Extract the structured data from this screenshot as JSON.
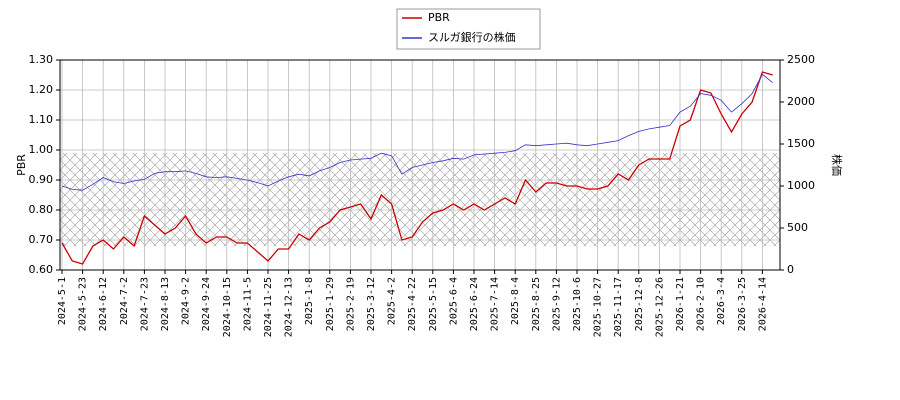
{
  "chart_data": {
    "type": "line",
    "categories": [
      "2024-5-1",
      null,
      "2024-5-23",
      null,
      "2024-6-12",
      null,
      "2024-7-2",
      null,
      "2024-7-23",
      null,
      "2024-8-13",
      null,
      "2024-9-2",
      null,
      "2024-9-24",
      null,
      "2024-10-15",
      null,
      "2024-11-5",
      null,
      "2024-11-25",
      null,
      "2024-12-13",
      null,
      "2025-1-8",
      null,
      "2025-1-29",
      null,
      "2025-2-19",
      null,
      "2025-3-12",
      null,
      "2025-4-2",
      null,
      "2025-4-22",
      null,
      "2025-5-15",
      null,
      "2025-6-4",
      null,
      "2025-6-24",
      null,
      "2025-7-14",
      null,
      "2025-8-4",
      null,
      "2025-8-25",
      null,
      "2025-9-12",
      null,
      "2025-10-6",
      null,
      "2025-10-27",
      null,
      "2025-11-17",
      null,
      "2025-12-8",
      null,
      "2025-12-26",
      null,
      "2026-1-21",
      null,
      "2026-2-10",
      null,
      "2026-3-4",
      null,
      "2026-3-25",
      null,
      "2026-4-14",
      null
    ],
    "series": [
      {
        "name": "PBR",
        "color": "#cc0000",
        "axis": "y",
        "values": [
          0.69,
          0.63,
          0.62,
          0.68,
          0.7,
          0.67,
          0.71,
          0.68,
          0.78,
          0.75,
          0.72,
          0.74,
          0.78,
          0.72,
          0.69,
          0.71,
          0.71,
          0.69,
          0.69,
          0.66,
          0.63,
          0.67,
          0.67,
          0.72,
          0.7,
          0.74,
          0.76,
          0.8,
          0.81,
          0.82,
          0.77,
          0.85,
          0.82,
          0.7,
          0.71,
          0.76,
          0.79,
          0.8,
          0.82,
          0.8,
          0.82,
          0.8,
          0.82,
          0.84,
          0.82,
          0.9,
          0.86,
          0.89,
          0.89,
          0.88,
          0.88,
          0.87,
          0.87,
          0.88,
          0.92,
          0.9,
          0.95,
          0.97,
          0.97,
          0.97,
          1.08,
          1.1,
          1.2,
          1.19,
          1.12,
          1.06,
          1.12,
          1.16,
          1.26,
          1.25
        ]
      },
      {
        "name": "スルガ銀行の株価",
        "color": "#3333cc",
        "axis": "y2",
        "values": [
          1000,
          960,
          950,
          1020,
          1100,
          1050,
          1030,
          1060,
          1080,
          1150,
          1170,
          1170,
          1180,
          1150,
          1110,
          1100,
          1110,
          1090,
          1070,
          1040,
          1000,
          1060,
          1110,
          1140,
          1120,
          1180,
          1220,
          1280,
          1310,
          1320,
          1330,
          1390,
          1360,
          1140,
          1220,
          1250,
          1280,
          1300,
          1330,
          1320,
          1370,
          1380,
          1390,
          1400,
          1420,
          1490,
          1480,
          1490,
          1500,
          1510,
          1490,
          1480,
          1500,
          1520,
          1540,
          1600,
          1650,
          1680,
          1700,
          1720,
          1880,
          1950,
          2100,
          2080,
          2020,
          1880,
          1980,
          2100,
          2330,
          2230
        ]
      }
    ],
    "y_label": "PBR",
    "y2_label": "株価",
    "ylim": [
      0.6,
      1.3
    ],
    "yticks": [
      {
        "value": 0.6,
        "label": "0.60"
      },
      {
        "value": 0.7,
        "label": "0.70"
      },
      {
        "value": 0.8,
        "label": "0.80"
      },
      {
        "value": 0.9,
        "label": "0.90"
      },
      {
        "value": 1.0,
        "label": "1.00"
      },
      {
        "value": 1.1,
        "label": "1.10"
      },
      {
        "value": 1.2,
        "label": "1.20"
      },
      {
        "value": 1.3,
        "label": "1.30"
      }
    ],
    "y2lim": [
      0,
      2500
    ],
    "y2ticks": [
      0,
      500,
      1000,
      1500,
      2000,
      2500
    ],
    "shaded_band": [
      0.68,
      0.99
    ],
    "grid": true,
    "legend": "top"
  }
}
